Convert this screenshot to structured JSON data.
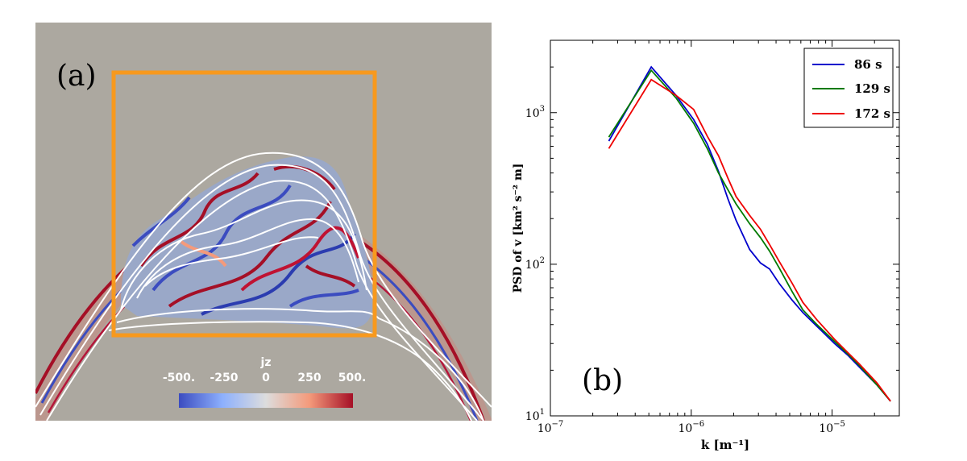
{
  "panel_a": {
    "label": "(a)",
    "colorbar": {
      "title": "jz",
      "ticks": [
        "-500.",
        "-250",
        "0",
        "250",
        "500."
      ],
      "colors": [
        "#3b4cc0",
        "#8db0fe",
        "#dddddd",
        "#f49a7b",
        "#a50f26"
      ]
    },
    "colors": {
      "background": "#aca8a0",
      "box": "#f7991e",
      "field_lines": "#ffffff"
    }
  },
  "chart_data": {
    "type": "line",
    "panel_label": "(b)",
    "xlabel": "k [m⁻¹]",
    "ylabel": "PSD of v [km² s⁻² m]",
    "xscale": "log",
    "yscale": "log",
    "xlim": [
      1e-07,
      3e-05
    ],
    "ylim": [
      10,
      3000
    ],
    "x_ticks": [
      {
        "base": "10",
        "exp": "−7"
      },
      {
        "base": "10",
        "exp": "−6"
      },
      {
        "base": "10",
        "exp": "−5"
      }
    ],
    "y_ticks": [
      {
        "base": "10",
        "exp": "1"
      },
      {
        "base": "10",
        "exp": "2"
      },
      {
        "base": "10",
        "exp": "3"
      }
    ],
    "legend_position": "top-right",
    "series": [
      {
        "name": "86 s",
        "color": "#0000cc",
        "x": [
          2.6e-07,
          5.2e-07,
          7.8e-07,
          1.04e-06,
          1.3e-06,
          1.56e-06,
          1.82e-06,
          2.08e-06,
          2.6e-06,
          3.1e-06,
          3.6e-06,
          4.2e-06,
          5.2e-06,
          6.2e-06,
          7.8e-06,
          1.04e-05,
          1.3e-05,
          1.56e-05,
          2.08e-05,
          2.6e-05
        ],
        "y": [
          650,
          2000,
          1300,
          900,
          620,
          410,
          270,
          195,
          125,
          102,
          93,
          75,
          58,
          48,
          39,
          30,
          25,
          21,
          16,
          12.5
        ]
      },
      {
        "name": "129 s",
        "color": "#007a00",
        "x": [
          2.6e-07,
          5.2e-07,
          7.8e-07,
          1.04e-06,
          1.3e-06,
          1.56e-06,
          1.82e-06,
          2.08e-06,
          2.6e-06,
          3.1e-06,
          3.6e-06,
          4.2e-06,
          5.2e-06,
          6.2e-06,
          7.8e-06,
          1.04e-05,
          1.3e-05,
          1.56e-05,
          2.08e-05,
          2.6e-05
        ],
        "y": [
          690,
          1900,
          1250,
          850,
          580,
          400,
          310,
          250,
          185,
          150,
          122,
          95,
          66,
          50,
          40,
          31,
          25.5,
          21.5,
          16,
          12.5
        ]
      },
      {
        "name": "172 s",
        "color": "#ee0000",
        "x": [
          2.6e-07,
          5.2e-07,
          7.8e-07,
          1.04e-06,
          1.3e-06,
          1.56e-06,
          1.82e-06,
          2.08e-06,
          2.6e-06,
          3.1e-06,
          3.6e-06,
          4.2e-06,
          5.2e-06,
          6.2e-06,
          7.8e-06,
          1.04e-05,
          1.3e-05,
          1.56e-05,
          2.08e-05,
          2.6e-05
        ],
        "y": [
          580,
          1650,
          1300,
          1050,
          700,
          520,
          370,
          280,
          210,
          170,
          135,
          105,
          75,
          56,
          43,
          32,
          26,
          22,
          16.5,
          12.5
        ]
      }
    ]
  }
}
